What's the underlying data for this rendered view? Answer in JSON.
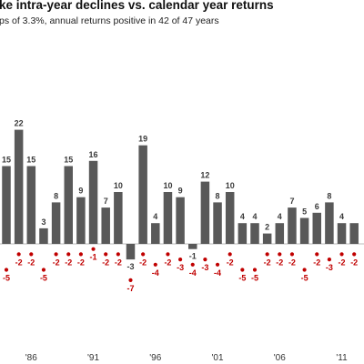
{
  "chart_data": {
    "type": "bar",
    "title": "ke intra-year declines vs. calendar year returns",
    "subtitle": "ps of 3.3%, annual returns positive in 42 of 47 years",
    "x": [
      1984,
      1985,
      1986,
      1987,
      1988,
      1989,
      1990,
      1991,
      1992,
      1993,
      1994,
      1995,
      1996,
      1997,
      1998,
      1999,
      2000,
      2001,
      2002,
      2003,
      2004,
      2005,
      2006,
      2007,
      2008,
      2009,
      2010,
      2011,
      2012
    ],
    "x_tick_labels": [
      {
        "x": 1986,
        "label": "'86"
      },
      {
        "x": 1991,
        "label": "'91"
      },
      {
        "x": 1996,
        "label": "'96"
      },
      {
        "x": 2001,
        "label": "'01"
      },
      {
        "x": 2006,
        "label": "'06"
      },
      {
        "x": 2011,
        "label": "'11"
      }
    ],
    "series": [
      {
        "kind": "bar",
        "color": "#595959",
        "values": [
          15,
          22,
          15,
          3,
          8,
          15,
          9,
          16,
          7,
          10,
          -3,
          19,
          4,
          10,
          9,
          -1,
          12,
          8,
          10,
          4,
          4,
          2,
          4,
          7,
          5,
          6,
          8,
          4,
          4
        ],
        "labels": [
          "15",
          "22",
          "15",
          "3",
          "8",
          "15",
          "9",
          "16",
          "7",
          "10",
          "-3",
          "19",
          "4",
          "10",
          "9",
          "-1",
          "12",
          "8",
          "10",
          "4",
          "4",
          "2",
          "4",
          "7",
          "5",
          "6",
          "8",
          "4",
          ""
        ]
      },
      {
        "kind": "dot",
        "color": "#c00000",
        "values": [
          -5,
          -2,
          -2,
          -5,
          -2,
          -2,
          -2,
          -1,
          -2,
          -2,
          -7,
          -2,
          -4,
          -2,
          -3,
          -4,
          -3,
          -4,
          -2,
          -5,
          -5,
          -2,
          -2,
          -2,
          -5,
          -2,
          -3,
          -2,
          -2
        ],
        "labels": [
          "-5",
          "-2",
          "-2",
          "-5",
          "-2",
          "-2",
          "-2",
          "-1",
          "-2",
          "-2",
          "-7",
          "-2",
          "-4",
          "-2",
          "-3",
          "-4",
          "-3",
          "-4",
          "-2",
          "-5",
          "-5",
          "-2",
          "-2",
          "-2",
          "-5",
          "-2",
          "-3",
          "-2",
          "-2"
        ]
      }
    ],
    "legend": "none",
    "grid": false
  },
  "colors": {
    "bar": "#595959",
    "dot": "#c00000",
    "axis": "#bbbbbb",
    "value_label": "#3a3a3a"
  }
}
